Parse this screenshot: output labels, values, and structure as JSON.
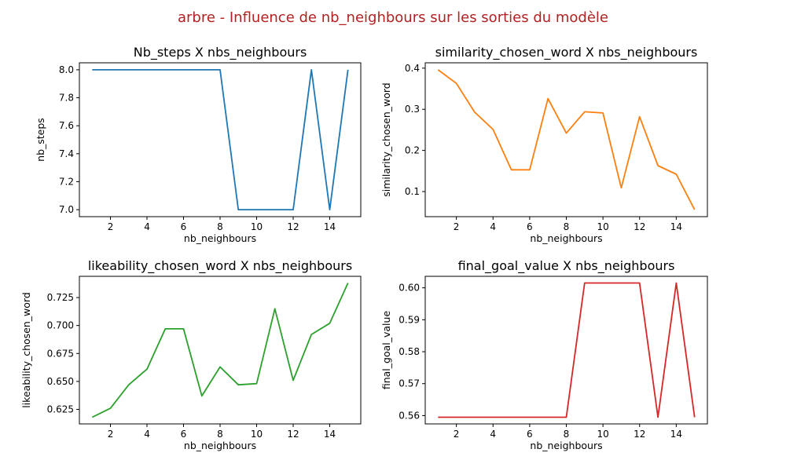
{
  "figure": {
    "title": "arbre - Influence de nb_neighbours sur les sorties du modèle",
    "title_color": "#b22222"
  },
  "chart_data": [
    {
      "type": "line",
      "title": "Nb_steps X nbs_neighbours",
      "xlabel": "nb_neighbours",
      "ylabel": "nb_steps",
      "color": "#1f77b4",
      "x": [
        1,
        2,
        3,
        4,
        5,
        6,
        7,
        8,
        9,
        10,
        11,
        12,
        13,
        14,
        15
      ],
      "y": [
        8,
        8,
        8,
        8,
        8,
        8,
        8,
        8,
        7,
        7,
        7,
        7,
        8,
        7,
        8
      ],
      "xlim": [
        0.3,
        15.7
      ],
      "ylim": [
        6.95,
        8.05
      ],
      "xticks": [
        2,
        4,
        6,
        8,
        10,
        12,
        14
      ],
      "yticks": [
        7.0,
        7.2,
        7.4,
        7.6,
        7.8,
        8.0
      ],
      "xtick_labels": [
        "2",
        "4",
        "6",
        "8",
        "10",
        "12",
        "14"
      ],
      "ytick_labels": [
        "7.0",
        "7.2",
        "7.4",
        "7.6",
        "7.8",
        "8.0"
      ],
      "grid": false
    },
    {
      "type": "line",
      "title": "similarity_chosen_word X nbs_neighbours",
      "xlabel": "nb_neighbours",
      "ylabel": "similarity_chosen_word",
      "color": "#ff7f0e",
      "x": [
        1,
        2,
        3,
        4,
        5,
        6,
        7,
        8,
        9,
        10,
        11,
        12,
        13,
        14,
        15
      ],
      "y": [
        0.396,
        0.363,
        0.293,
        0.251,
        0.153,
        0.153,
        0.326,
        0.242,
        0.294,
        0.291,
        0.109,
        0.282,
        0.163,
        0.142,
        0.056
      ],
      "xlim": [
        0.3,
        15.7
      ],
      "ylim": [
        0.039,
        0.413
      ],
      "xticks": [
        2,
        4,
        6,
        8,
        10,
        12,
        14
      ],
      "yticks": [
        0.1,
        0.2,
        0.3,
        0.4
      ],
      "xtick_labels": [
        "2",
        "4",
        "6",
        "8",
        "10",
        "12",
        "14"
      ],
      "ytick_labels": [
        "0.1",
        "0.2",
        "0.3",
        "0.4"
      ],
      "grid": false
    },
    {
      "type": "line",
      "title": "likeability_chosen_word X nbs_neighbours",
      "xlabel": "nb_neighbours",
      "ylabel": "likeability_chosen_word",
      "color": "#2ca02c",
      "x": [
        1,
        2,
        3,
        4,
        5,
        6,
        7,
        8,
        9,
        10,
        11,
        12,
        13,
        14,
        15
      ],
      "y": [
        0.618,
        0.626,
        0.647,
        0.661,
        0.697,
        0.697,
        0.637,
        0.663,
        0.647,
        0.648,
        0.715,
        0.651,
        0.692,
        0.702,
        0.738
      ],
      "xlim": [
        0.3,
        15.7
      ],
      "ylim": [
        0.612,
        0.744
      ],
      "xticks": [
        2,
        4,
        6,
        8,
        10,
        12,
        14
      ],
      "yticks": [
        0.625,
        0.65,
        0.675,
        0.7,
        0.725
      ],
      "xtick_labels": [
        "2",
        "4",
        "6",
        "8",
        "10",
        "12",
        "14"
      ],
      "ytick_labels": [
        "0.625",
        "0.650",
        "0.675",
        "0.700",
        "0.725"
      ],
      "grid": false
    },
    {
      "type": "line",
      "title": "final_goal_value X nbs_neighbours",
      "xlabel": "nb_neighbours",
      "ylabel": "final_goal_value",
      "color": "#d62728",
      "x": [
        1,
        2,
        3,
        4,
        5,
        6,
        7,
        8,
        9,
        10,
        11,
        12,
        13,
        14,
        15
      ],
      "y": [
        0.5595,
        0.5595,
        0.5595,
        0.5595,
        0.5595,
        0.5595,
        0.5595,
        0.5595,
        0.6015,
        0.6015,
        0.6015,
        0.6015,
        0.5595,
        0.6015,
        0.5595
      ],
      "xlim": [
        0.3,
        15.7
      ],
      "ylim": [
        0.5574,
        0.6036
      ],
      "xticks": [
        2,
        4,
        6,
        8,
        10,
        12,
        14
      ],
      "yticks": [
        0.56,
        0.57,
        0.58,
        0.59,
        0.6
      ],
      "xtick_labels": [
        "2",
        "4",
        "6",
        "8",
        "10",
        "12",
        "14"
      ],
      "ytick_labels": [
        "0.56",
        "0.57",
        "0.58",
        "0.59",
        "0.60"
      ],
      "grid": false
    }
  ]
}
